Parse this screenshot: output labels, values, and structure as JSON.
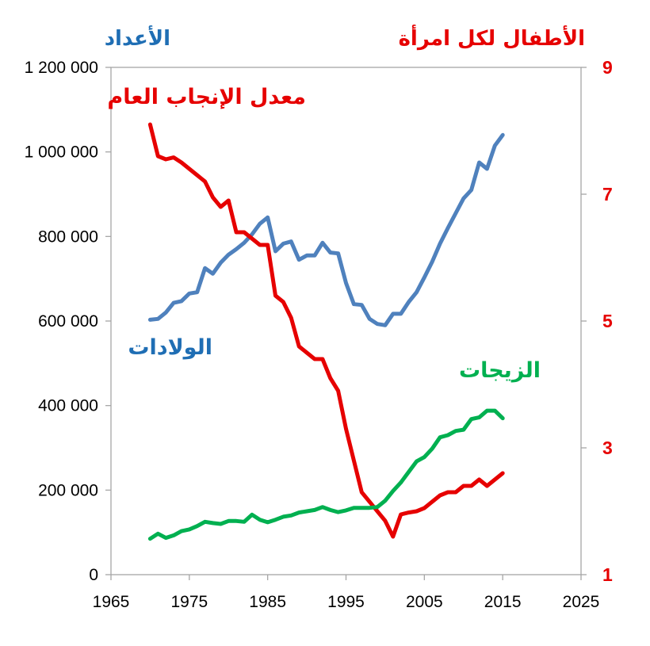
{
  "chart_data": {
    "type": "line",
    "y_left_label": "الأعداد",
    "y_right_label": "الأطفال لكل امرأة",
    "xlim": [
      1965,
      2025
    ],
    "ylim_left": [
      0,
      1200000
    ],
    "ylim_right": [
      1,
      9
    ],
    "x_ticks": [
      1965,
      1975,
      1985,
      1995,
      2005,
      2015,
      2025
    ],
    "y_left_ticks": [
      0,
      200000,
      400000,
      600000,
      800000,
      1000000,
      1200000
    ],
    "y_left_tick_labels": [
      "0",
      "200 000",
      "400 000",
      "600 000",
      "800 000",
      "1 000 000",
      "1 200 000"
    ],
    "y_right_ticks": [
      1,
      3,
      5,
      7,
      9
    ],
    "grid": false,
    "series": [
      {
        "name": "الولادات",
        "axis": "left",
        "color": "#4f81bd",
        "x": [
          1970,
          1971,
          1972,
          1973,
          1974,
          1975,
          1976,
          1977,
          1978,
          1979,
          1980,
          1981,
          1982,
          1983,
          1984,
          1985,
          1986,
          1987,
          1988,
          1989,
          1990,
          1991,
          1992,
          1993,
          1994,
          1995,
          1996,
          1997,
          1998,
          1999,
          2000,
          2001,
          2002,
          2003,
          2004,
          2005,
          2006,
          2007,
          2008,
          2009,
          2010,
          2011,
          2012,
          2013,
          2014,
          2015
        ],
        "values": [
          603000,
          605000,
          620000,
          643000,
          647000,
          665000,
          668000,
          725000,
          712000,
          738000,
          757000,
          770000,
          785000,
          805000,
          830000,
          845000,
          765000,
          783000,
          788000,
          745000,
          755000,
          755000,
          785000,
          762000,
          760000,
          690000,
          640000,
          638000,
          605000,
          593000,
          590000,
          617000,
          617000,
          645000,
          668000,
          703000,
          740000,
          783000,
          820000,
          855000,
          890000,
          910000,
          975000,
          960000,
          1015000,
          1040000
        ]
      },
      {
        "name": "معدل الإنجاب العام",
        "axis": "right",
        "color": "#e60000",
        "x": [
          1970,
          1971,
          1972,
          1973,
          1974,
          1975,
          1976,
          1977,
          1978,
          1979,
          1980,
          1981,
          1982,
          1983,
          1984,
          1985,
          1986,
          1987,
          1988,
          1989,
          1990,
          1991,
          1992,
          1993,
          1994,
          1995,
          1996,
          1997,
          1998,
          1999,
          2000,
          2001,
          2002,
          2003,
          2004,
          2005,
          2006,
          2007,
          2008,
          2009,
          2010,
          2011,
          2012,
          2013,
          2014,
          2015
        ],
        "values": [
          8.1,
          7.6,
          7.55,
          7.58,
          7.5,
          7.4,
          7.3,
          7.2,
          6.95,
          6.8,
          6.9,
          6.4,
          6.4,
          6.3,
          6.2,
          6.2,
          5.4,
          5.3,
          5.05,
          4.6,
          4.5,
          4.4,
          4.4,
          4.1,
          3.9,
          3.3,
          2.8,
          2.3,
          2.15,
          2.0,
          1.85,
          1.6,
          1.95,
          1.98,
          2.0,
          2.05,
          2.15,
          2.25,
          2.3,
          2.3,
          2.4,
          2.4,
          2.5,
          2.4,
          2.5,
          2.6
        ]
      },
      {
        "name": "الزيجات",
        "axis": "left",
        "color": "#00b050",
        "x": [
          1970,
          1971,
          1972,
          1973,
          1974,
          1975,
          1976,
          1977,
          1978,
          1979,
          1980,
          1981,
          1982,
          1983,
          1984,
          1985,
          1986,
          1987,
          1988,
          1989,
          1990,
          1991,
          1992,
          1993,
          1994,
          1995,
          1996,
          1997,
          1998,
          1999,
          2000,
          2001,
          2002,
          2003,
          2004,
          2005,
          2006,
          2007,
          2008,
          2009,
          2010,
          2011,
          2012,
          2013,
          2014,
          2015
        ],
        "values": [
          85000,
          97000,
          87000,
          93000,
          103000,
          107000,
          115000,
          125000,
          122000,
          120000,
          127000,
          127000,
          125000,
          142000,
          130000,
          124000,
          130000,
          137000,
          140000,
          147000,
          150000,
          153000,
          160000,
          153000,
          148000,
          152000,
          158000,
          158000,
          158000,
          160000,
          175000,
          198000,
          218000,
          243000,
          268000,
          278000,
          298000,
          325000,
          330000,
          340000,
          343000,
          368000,
          372000,
          388000,
          388000,
          370000
        ]
      }
    ]
  }
}
